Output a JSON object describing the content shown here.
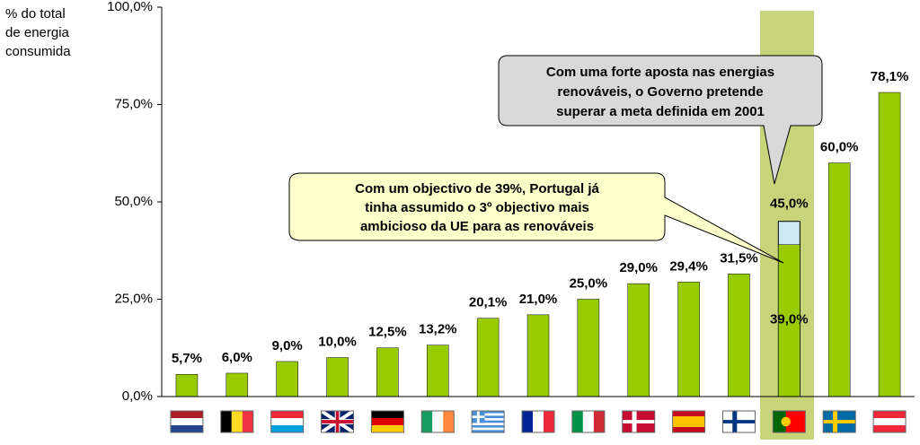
{
  "chart_data": {
    "type": "bar",
    "y_label": [
      "% do total",
      "de energia",
      "consumida"
    ],
    "categories": [
      null,
      null,
      null,
      null,
      null,
      null,
      null,
      null,
      null,
      null,
      null,
      null,
      null,
      null,
      null
    ],
    "values": [
      5.7,
      6.0,
      9.0,
      10.0,
      12.5,
      13.2,
      20.1,
      21.0,
      25.0,
      29.0,
      29.4,
      31.5,
      39.0,
      60.0,
      78.1
    ],
    "value_labels": [
      "5,7%",
      "6,0%",
      "9,0%",
      "10,0%",
      "12,5%",
      "13,2%",
      "20,1%",
      "21,0%",
      "25,0%",
      "29,0%",
      "29,4%",
      "31,5%",
      "39,0%",
      "60,0%",
      "78,1%"
    ],
    "target_values": [
      null,
      null,
      null,
      null,
      null,
      null,
      null,
      null,
      null,
      null,
      null,
      null,
      45.0,
      null,
      null
    ],
    "target_value_labels": [
      null,
      null,
      null,
      null,
      null,
      null,
      null,
      null,
      null,
      null,
      null,
      null,
      "45,0%",
      null,
      null
    ],
    "color": "#99cc00",
    "target_color": "#cce8f0",
    "ylim": [
      0,
      100
    ],
    "yticks": [
      {
        "value": 0,
        "label": "0,0%"
      },
      {
        "value": 25,
        "label": "25,0%"
      },
      {
        "value": 50,
        "label": "50,0%"
      },
      {
        "value": 75,
        "label": "75,0%"
      },
      {
        "value": 100,
        "label": "100,0%"
      }
    ],
    "grid": false,
    "annotations": [
      [
        "Com uma forte aposta nas energias",
        "renováveis, o Governo pretende",
        "superar a meta definida em 2001"
      ],
      [
        "Com um objectivo de 39%, Portugal já",
        "tinha assumido o 3º objectivo mais",
        "ambicioso da UE para as renováveis"
      ]
    ]
  }
}
